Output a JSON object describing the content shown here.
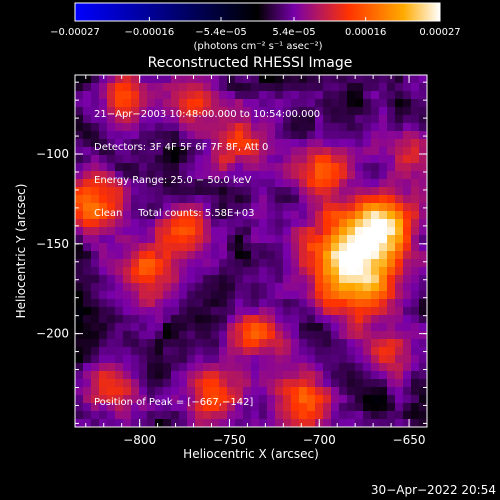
{
  "chart_data": {
    "type": "heatmap",
    "title": "Reconstructed RHESSI Image",
    "xlabel": "Heliocentric X (arcsec)",
    "ylabel": "Heliocentric Y (arcsec)",
    "xlim": [
      -836,
      -640
    ],
    "ylim": [
      -252,
      -56
    ],
    "x_ticks": [
      -800,
      -750,
      -700,
      -650
    ],
    "x_tick_labels": [
      "−800",
      "−750",
      "−700",
      "−650"
    ],
    "y_ticks": [
      -100,
      -150,
      -200
    ],
    "y_tick_labels": [
      "−100",
      "−150",
      "−200"
    ],
    "colorbar": {
      "min": -0.00027,
      "max": 0.00027,
      "tick_values": [
        -0.00027,
        -0.00016,
        -5.4e-05,
        5.4e-05,
        0.00016,
        0.00027
      ],
      "tick_labels": [
        "−0.00027",
        "−0.00016",
        "−5.4e−05",
        "5.4e−05",
        "0.00016",
        "0.00027"
      ],
      "unit_label": "(photons cm⁻² s⁻¹ asec⁻²)",
      "colors": [
        "#0000ff",
        "#000000",
        "#7700aa",
        "#ff3300",
        "#ffaa00",
        "#ffffff"
      ]
    },
    "annotations": [
      "21−Apr−2003 10:48:00.000 to 10:54:00.000",
      "Detectors: 3F 4F 5F 6F 7F 8F, Att 0",
      "Energy Range: 25.0 − 50.0 keV",
      "Clean     Total counts: 5.58E+03"
    ],
    "peak_label": "Position of Peak = [−667,−142]",
    "peak": [
      -667,
      -142
    ],
    "hot_spots": [
      {
        "x": -667,
        "y": -142,
        "level": 1.0,
        "r": 14
      },
      {
        "x": -690,
        "y": -158,
        "level": 0.75,
        "r": 16
      },
      {
        "x": -675,
        "y": -175,
        "level": 0.6,
        "r": 14
      },
      {
        "x": -825,
        "y": -125,
        "level": 0.7,
        "r": 12
      },
      {
        "x": -745,
        "y": -95,
        "level": 0.55,
        "r": 11
      },
      {
        "x": -700,
        "y": -110,
        "level": 0.6,
        "r": 10
      },
      {
        "x": -795,
        "y": -165,
        "level": 0.55,
        "r": 12
      },
      {
        "x": -775,
        "y": -140,
        "level": 0.5,
        "r": 10
      },
      {
        "x": -710,
        "y": -235,
        "level": 0.65,
        "r": 12
      },
      {
        "x": -760,
        "y": -235,
        "level": 0.55,
        "r": 11
      },
      {
        "x": -815,
        "y": -230,
        "level": 0.5,
        "r": 10
      },
      {
        "x": -810,
        "y": -70,
        "level": 0.5,
        "r": 10
      },
      {
        "x": -735,
        "y": -200,
        "level": 0.5,
        "r": 12
      },
      {
        "x": -660,
        "y": -210,
        "level": 0.45,
        "r": 10
      },
      {
        "x": -650,
        "y": -95,
        "level": 0.45,
        "r": 9
      },
      {
        "x": -770,
        "y": -70,
        "level": 0.45,
        "r": 10
      }
    ],
    "grid": false
  },
  "footer": {
    "timestamp": "30−Apr−2022 20:54"
  }
}
